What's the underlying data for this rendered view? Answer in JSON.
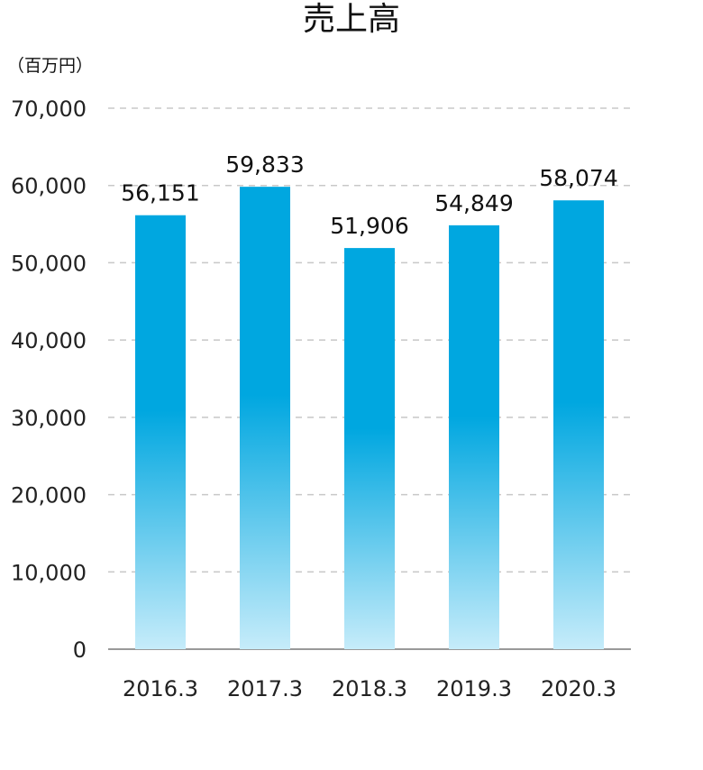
{
  "chart_data": {
    "type": "bar",
    "title": "売上高",
    "unit_label": "（百万円）",
    "categories": [
      "2016.3",
      "2017.3",
      "2018.3",
      "2019.3",
      "2020.3"
    ],
    "values": [
      56151,
      59833,
      51906,
      54849,
      58074
    ],
    "value_labels": [
      "56,151",
      "59,833",
      "51,906",
      "54,849",
      "58,074"
    ],
    "yticks": [
      0,
      10000,
      20000,
      30000,
      40000,
      50000,
      60000,
      70000
    ],
    "ytick_labels": [
      "0",
      "10,000",
      "20,000",
      "30,000",
      "40,000",
      "50,000",
      "60,000",
      "70,000"
    ],
    "ylim": [
      0,
      70000
    ],
    "grid": true,
    "colors": {
      "bar_top": "#00a7e0",
      "bar_mid": "#00a7e0",
      "bar_bottom": "#c6ecfa",
      "grid": "#c8c8c8",
      "axis": "#999999"
    }
  }
}
